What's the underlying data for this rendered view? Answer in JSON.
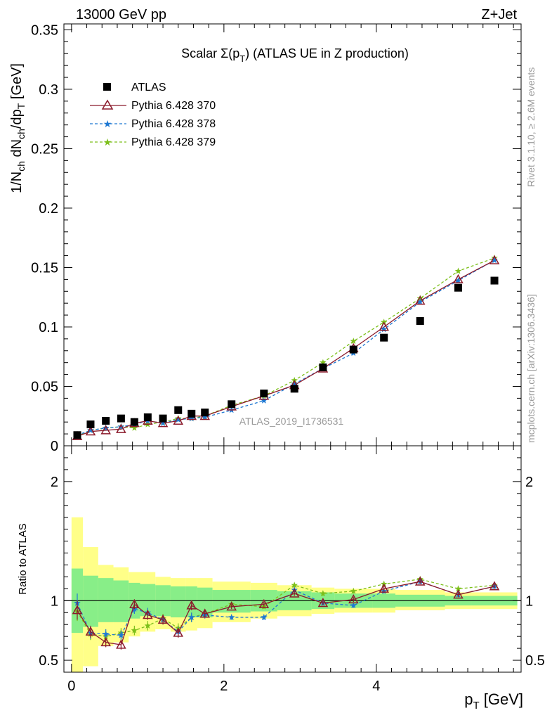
{
  "header": {
    "left": "13000 GeV pp",
    "right": "Z+Jet"
  },
  "side_labels": {
    "rivet": "Rivet 3.1.10, ≥ 2.6M events",
    "mcplots": "mcplots.cern.ch [arXiv:1306.3436]"
  },
  "chart_data": [
    {
      "type": "scatter",
      "panel": "main",
      "title": "Scalar Σ(p_T) (ATLAS UE in Z production)",
      "title_parts": {
        "before": "Scalar Σ(p",
        "sub": "T",
        "after": ") (ATLAS UE in Z production)"
      },
      "watermark": "ATLAS_2019_I1736531",
      "xlabel": "p_T [GeV]",
      "xlabel_parts": {
        "main": "p",
        "sub": "T",
        "unit": " [GeV]"
      },
      "ylabel": "1/N_ch dN_ch/dp_T [GeV]",
      "xlim": [
        -0.1,
        5.9
      ],
      "ylim": [
        0,
        0.355
      ],
      "x_ticks": [
        0,
        2,
        4
      ],
      "y_ticks": [
        0,
        0.05,
        0.1,
        0.15,
        0.2,
        0.25,
        0.3,
        0.35
      ],
      "y_tick_labels": [
        "0",
        "0.05",
        "0.1",
        "0.15",
        "0.2",
        "0.25",
        "0.3",
        "0.35"
      ],
      "legend_position": "top-left",
      "x": [
        0.075,
        0.25,
        0.45,
        0.65,
        0.825,
        1.0,
        1.2,
        1.4,
        1.575,
        1.75,
        2.1,
        2.525,
        2.925,
        3.3,
        3.7,
        4.1,
        4.575,
        5.075,
        5.55
      ],
      "series": [
        {
          "name": "ATLAS",
          "style": "data",
          "color": "#000000",
          "values": [
            0.009,
            0.018,
            0.021,
            0.023,
            0.02,
            0.024,
            0.023,
            0.03,
            0.027,
            0.028,
            0.035,
            0.044,
            0.048,
            0.066,
            0.081,
            0.091,
            0.105,
            0.133,
            0.139
          ]
        },
        {
          "name": "Pythia 6.428 370",
          "style": "triangle-solid",
          "color": "#8b1a2b",
          "values": [
            0.008,
            0.012,
            0.013,
            0.014,
            0.019,
            0.021,
            0.019,
            0.021,
            0.025,
            0.025,
            0.033,
            0.042,
            0.051,
            0.065,
            0.082,
            0.1,
            0.122,
            0.14,
            0.156
          ]
        },
        {
          "name": "Pythia 6.428 378",
          "style": "star-dashed",
          "color": "#1e78d2",
          "values": [
            0.009,
            0.013,
            0.015,
            0.016,
            0.018,
            0.021,
            0.019,
            0.022,
            0.023,
            0.024,
            0.03,
            0.038,
            0.052,
            0.065,
            0.078,
            0.098,
            0.121,
            0.139,
            0.156
          ]
        },
        {
          "name": "Pythia 6.428 379",
          "style": "star-dashed",
          "color": "#7cbf1a",
          "values": [
            0.008,
            0.013,
            0.015,
            0.016,
            0.015,
            0.018,
            0.02,
            0.023,
            0.023,
            0.025,
            0.034,
            0.042,
            0.055,
            0.07,
            0.088,
            0.104,
            0.124,
            0.147,
            0.158
          ]
        }
      ]
    },
    {
      "type": "line",
      "panel": "ratio",
      "ylabel": "Ratio to ATLAS",
      "xlim": [
        -0.1,
        5.9
      ],
      "ylim": [
        0.4,
        2.3
      ],
      "y_ticks": [
        0.5,
        1,
        2
      ],
      "y_tick_labels": [
        "0.5",
        "1",
        "2"
      ],
      "reference_line": 1,
      "bins": [
        [
          0,
          0.15
        ],
        [
          0.15,
          0.35
        ],
        [
          0.35,
          0.55
        ],
        [
          0.55,
          0.75
        ],
        [
          0.75,
          0.9
        ],
        [
          0.9,
          1.1
        ],
        [
          1.1,
          1.3
        ],
        [
          1.3,
          1.5
        ],
        [
          1.5,
          1.65
        ],
        [
          1.65,
          1.85
        ],
        [
          1.85,
          2.35
        ],
        [
          2.35,
          2.7
        ],
        [
          2.7,
          3.15
        ],
        [
          3.15,
          3.45
        ],
        [
          3.45,
          3.95
        ],
        [
          3.95,
          4.25
        ],
        [
          4.25,
          4.9
        ],
        [
          4.9,
          5.25
        ],
        [
          5.25,
          5.85
        ]
      ],
      "band_green": [
        [
          0.73,
          1.27
        ],
        [
          0.78,
          1.21
        ],
        [
          0.82,
          1.19
        ],
        [
          0.82,
          1.17
        ],
        [
          0.85,
          1.15
        ],
        [
          0.87,
          1.14
        ],
        [
          0.87,
          1.13
        ],
        [
          0.86,
          1.12
        ],
        [
          0.86,
          1.12
        ],
        [
          0.86,
          1.11
        ],
        [
          0.9,
          1.09
        ],
        [
          0.91,
          1.09
        ],
        [
          0.92,
          1.08
        ],
        [
          0.93,
          1.07
        ],
        [
          0.94,
          1.06
        ],
        [
          0.94,
          1.06
        ],
        [
          0.95,
          1.05
        ],
        [
          0.96,
          1.04
        ],
        [
          0.96,
          1.04
        ]
      ],
      "band_yellow": [
        [
          0.35,
          1.7
        ],
        [
          0.45,
          1.45
        ],
        [
          0.62,
          1.3
        ],
        [
          0.65,
          1.28
        ],
        [
          0.7,
          1.24
        ],
        [
          0.74,
          1.24
        ],
        [
          0.76,
          1.2
        ],
        [
          0.74,
          1.19
        ],
        [
          0.75,
          1.19
        ],
        [
          0.77,
          1.19
        ],
        [
          0.82,
          1.16
        ],
        [
          0.85,
          1.15
        ],
        [
          0.87,
          1.13
        ],
        [
          0.89,
          1.11
        ],
        [
          0.9,
          1.1
        ],
        [
          0.9,
          1.1
        ],
        [
          0.92,
          1.09
        ],
        [
          0.93,
          1.07
        ],
        [
          0.93,
          1.07
        ]
      ],
      "series": [
        {
          "name": "Pythia 6.428 370",
          "color": "#8b1a2b",
          "values": [
            0.92,
            0.74,
            0.65,
            0.63,
            0.97,
            0.88,
            0.84,
            0.73,
            0.96,
            0.89,
            0.95,
            0.97,
            1.06,
            0.98,
            1.01,
            1.1,
            1.16,
            1.05,
            1.12
          ]
        },
        {
          "name": "Pythia 6.428 378",
          "color": "#1e78d2",
          "values": [
            0.98,
            0.73,
            0.72,
            0.71,
            0.93,
            0.9,
            0.84,
            0.74,
            0.86,
            0.88,
            0.86,
            0.86,
            1.09,
            0.98,
            0.96,
            1.08,
            1.16,
            1.05,
            1.12
          ]
        },
        {
          "name": "Pythia 6.428 379",
          "color": "#7cbf1a",
          "values": [
            0.91,
            0.72,
            0.7,
            0.73,
            0.75,
            0.79,
            0.85,
            0.77,
            0.86,
            0.89,
            0.97,
            0.95,
            1.13,
            1.06,
            1.08,
            1.14,
            1.18,
            1.1,
            1.13
          ]
        }
      ]
    }
  ]
}
